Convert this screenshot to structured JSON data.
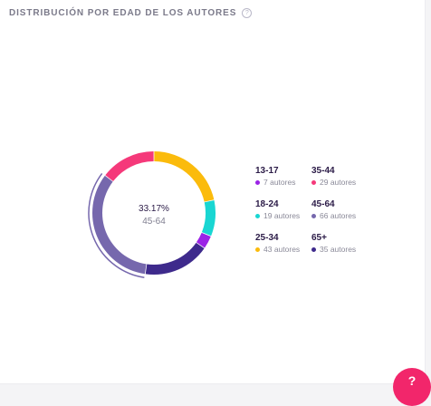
{
  "widget": {
    "title": "DISTRIBUCIÓN POR EDAD DE LOS AUTORES",
    "help_icon": "question-circle-icon"
  },
  "chart_data": {
    "type": "pie",
    "style": "donut",
    "center": {
      "value": "33.17%",
      "label": "45-64"
    },
    "highlighted": "45-64",
    "series": [
      {
        "label": "13-17",
        "count": 7,
        "count_text": "7 autores",
        "color": "#9b23e6"
      },
      {
        "label": "35-44",
        "count": 29,
        "count_text": "29 autores",
        "color": "#f5397a"
      },
      {
        "label": "18-24",
        "count": 19,
        "count_text": "19 autores",
        "color": "#19d6d2"
      },
      {
        "label": "45-64",
        "count": 66,
        "count_text": "66 autores",
        "color": "#7668ad"
      },
      {
        "label": "25-34",
        "count": 43,
        "count_text": "43 autores",
        "color": "#fbbb0c"
      },
      {
        "label": "65+",
        "count": 35,
        "count_text": "35 autores",
        "color": "#3e2a8c"
      }
    ]
  },
  "help_button": {
    "label": "?",
    "icon": "help-chat-icon",
    "color": "#f2266b"
  }
}
